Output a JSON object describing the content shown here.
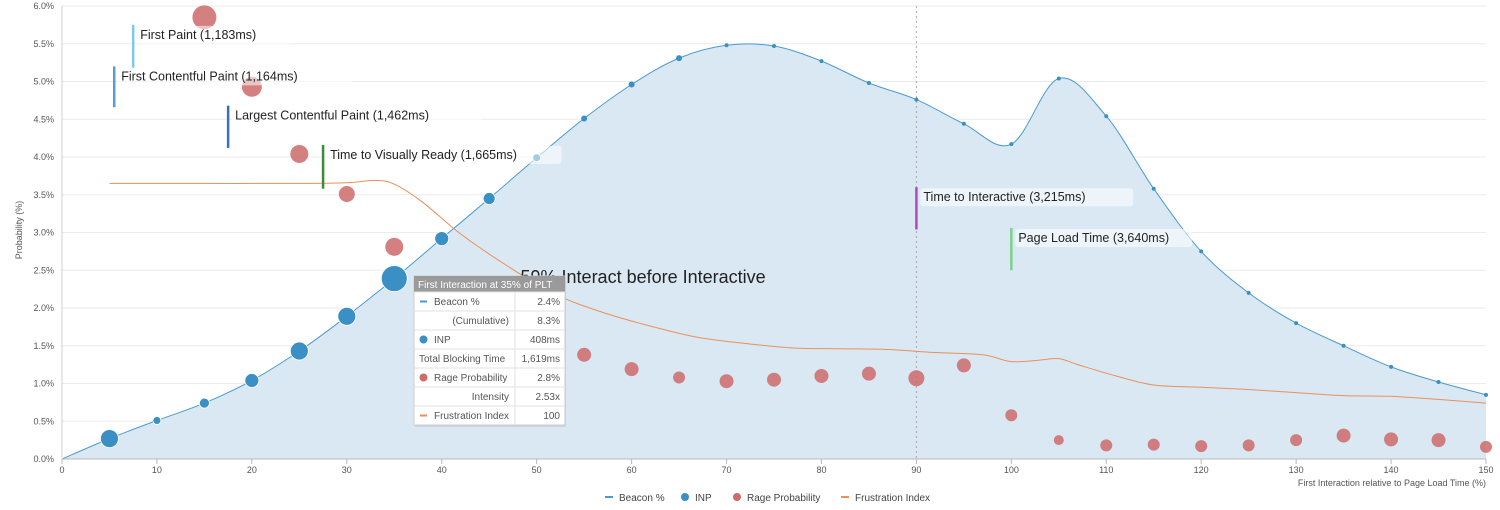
{
  "chart_data": {
    "type": "area",
    "title": "",
    "xlabel": "First Interaction relative to Page Load Time (%)",
    "ylabel": "Probability (%)",
    "xlim": [
      0,
      150
    ],
    "ylim": [
      0,
      6.0
    ],
    "x_ticks": [
      "0",
      "10",
      "20",
      "30",
      "40",
      "50",
      "60",
      "70",
      "80",
      "90",
      "100",
      "110",
      "120",
      "130",
      "140",
      "150"
    ],
    "y_ticks": [
      "0.0%",
      "0.5%",
      "1.0%",
      "1.5%",
      "2.0%",
      "2.5%",
      "3.0%",
      "3.5%",
      "4.0%",
      "4.5%",
      "5.0%",
      "5.5%",
      "6.0%"
    ],
    "legend_position": "bottom-center",
    "series": [
      {
        "name": "Beacon %",
        "type": "area",
        "color": "#4a9bd1",
        "points": [
          [
            0,
            0
          ],
          [
            5,
            0.27
          ],
          [
            10,
            0.51
          ],
          [
            15,
            0.74
          ],
          [
            20,
            1.04
          ],
          [
            25,
            1.43
          ],
          [
            30,
            1.89
          ],
          [
            35,
            2.39
          ],
          [
            40,
            2.92
          ],
          [
            45,
            3.45
          ],
          [
            50,
            3.99
          ],
          [
            55,
            4.51
          ],
          [
            60,
            4.96
          ],
          [
            65,
            5.31
          ],
          [
            70,
            5.48
          ],
          [
            75,
            5.47
          ],
          [
            80,
            5.27
          ],
          [
            85,
            4.98
          ],
          [
            90,
            4.76
          ],
          [
            95,
            4.44
          ],
          [
            100,
            4.17
          ],
          [
            105,
            5.04
          ],
          [
            110,
            4.54
          ],
          [
            115,
            3.58
          ],
          [
            120,
            2.75
          ],
          [
            125,
            2.2
          ],
          [
            130,
            1.8
          ],
          [
            135,
            1.5
          ],
          [
            140,
            1.22
          ],
          [
            145,
            1.02
          ],
          [
            150,
            0.85
          ]
        ]
      },
      {
        "name": "INP",
        "type": "bubble",
        "color": "#3a8fc4",
        "points": [
          [
            5,
            0.27,
            9
          ],
          [
            10,
            0.51,
            4
          ],
          [
            15,
            0.74,
            5
          ],
          [
            20,
            1.04,
            7
          ],
          [
            25,
            1.43,
            9
          ],
          [
            30,
            1.89,
            9
          ],
          [
            35,
            2.39,
            13
          ],
          [
            40,
            2.92,
            7
          ],
          [
            45,
            3.45,
            6
          ],
          [
            50,
            3.99,
            4
          ],
          [
            55,
            4.51,
            3
          ],
          [
            60,
            4.96,
            3
          ],
          [
            65,
            5.31,
            3
          ],
          [
            70,
            5.48,
            2
          ],
          [
            75,
            5.47,
            2
          ],
          [
            80,
            5.27,
            2
          ],
          [
            85,
            4.98,
            2
          ],
          [
            90,
            4.76,
            2
          ],
          [
            95,
            4.44,
            2
          ],
          [
            100,
            4.17,
            2
          ],
          [
            105,
            5.04,
            2
          ],
          [
            110,
            4.54,
            2
          ],
          [
            115,
            3.58,
            2
          ],
          [
            120,
            2.75,
            2
          ],
          [
            125,
            2.2,
            2
          ],
          [
            130,
            1.8,
            2
          ],
          [
            135,
            1.5,
            2
          ],
          [
            140,
            1.22,
            2
          ],
          [
            145,
            1.02,
            2
          ],
          [
            150,
            0.85,
            2
          ]
        ]
      },
      {
        "name": "Rage Probability",
        "type": "bubble",
        "color": "#cd6a6a",
        "points": [
          [
            15,
            5.85,
            12
          ],
          [
            20,
            4.93,
            10
          ],
          [
            25,
            4.04,
            9
          ],
          [
            30,
            3.51,
            8
          ],
          [
            35,
            2.81,
            9
          ],
          [
            55,
            1.38,
            7
          ],
          [
            60,
            1.19,
            7
          ],
          [
            65,
            1.08,
            6
          ],
          [
            70,
            1.03,
            7
          ],
          [
            75,
            1.05,
            7
          ],
          [
            80,
            1.1,
            7
          ],
          [
            85,
            1.13,
            7
          ],
          [
            90,
            1.07,
            8
          ],
          [
            95,
            1.24,
            7
          ],
          [
            100,
            0.58,
            6
          ],
          [
            105,
            0.25,
            5
          ],
          [
            110,
            0.18,
            6
          ],
          [
            115,
            0.19,
            6
          ],
          [
            120,
            0.17,
            6
          ],
          [
            125,
            0.18,
            6
          ],
          [
            130,
            0.25,
            6
          ],
          [
            135,
            0.31,
            7
          ],
          [
            140,
            0.26,
            7
          ],
          [
            145,
            0.25,
            7
          ],
          [
            150,
            0.16,
            6
          ]
        ]
      },
      {
        "name": "Frustration Index",
        "type": "line",
        "color": "#e8915a",
        "points": [
          [
            5,
            3.65
          ],
          [
            15,
            3.65
          ],
          [
            25,
            3.65
          ],
          [
            30,
            3.66
          ],
          [
            33,
            3.69
          ],
          [
            35,
            3.64
          ],
          [
            38,
            3.4
          ],
          [
            42,
            2.98
          ],
          [
            47,
            2.55
          ],
          [
            52,
            2.18
          ],
          [
            57,
            1.94
          ],
          [
            62,
            1.76
          ],
          [
            67,
            1.61
          ],
          [
            72,
            1.53
          ],
          [
            77,
            1.47
          ],
          [
            82,
            1.46
          ],
          [
            87,
            1.45
          ],
          [
            92,
            1.41
          ],
          [
            97,
            1.38
          ],
          [
            100,
            1.29
          ],
          [
            103,
            1.31
          ],
          [
            105,
            1.33
          ],
          [
            107,
            1.25
          ],
          [
            111,
            1.1
          ],
          [
            115,
            0.98
          ],
          [
            120,
            0.95
          ],
          [
            125,
            0.92
          ],
          [
            130,
            0.88
          ],
          [
            135,
            0.84
          ],
          [
            140,
            0.83
          ],
          [
            145,
            0.79
          ],
          [
            150,
            0.74
          ]
        ]
      }
    ],
    "vertical_line": {
      "x": 90,
      "style": "dotted"
    },
    "annotations": [
      {
        "text": "First Paint (1,183ms)",
        "x": 7.5,
        "y_top": 5.75,
        "y_bottom": 5.18,
        "color": "#7fc8e8"
      },
      {
        "text": "First Contentful Paint (1,164ms)",
        "x": 5.5,
        "y_top": 5.2,
        "y_bottom": 4.66,
        "color": "#5b9bd0"
      },
      {
        "text": "Largest Contentful Paint (1,462ms)",
        "x": 17.5,
        "y_top": 4.68,
        "y_bottom": 4.12,
        "color": "#3a6ec0"
      },
      {
        "text": "Time to Visually Ready (1,665ms)",
        "x": 27.5,
        "y_top": 4.16,
        "y_bottom": 3.58,
        "color": "#3a8a3a"
      },
      {
        "text": "Time to Interactive (3,215ms)",
        "x": 90,
        "y_top": 3.6,
        "y_bottom": 3.04,
        "color": "#b04ab8"
      },
      {
        "text": "Page Load Time (3,640ms)",
        "x": 100,
        "y_top": 3.06,
        "y_bottom": 2.5,
        "color": "#7fd18a"
      }
    ],
    "center_annotation": {
      "text": "← 59% Interact before Interactive",
      "x": 60,
      "y": 2.33
    },
    "tooltip": {
      "header": "First Interaction at 35% of PLT",
      "rows": [
        {
          "label": "Beacon %",
          "value": "2.4%",
          "marker": "line",
          "color": "#4a9bd1"
        },
        {
          "label": "(Cumulative)",
          "value": "8.3%",
          "marker": "none",
          "color": ""
        },
        {
          "label": "INP",
          "value": "408ms",
          "marker": "dot",
          "color": "#3a8fc4"
        },
        {
          "label": "Total Blocking Time",
          "value": "1,619ms",
          "marker": "none",
          "color": ""
        },
        {
          "label": "Rage Probability",
          "value": "2.8%",
          "marker": "dot",
          "color": "#cd6a6a"
        },
        {
          "label": "Intensity",
          "value": "2.53x",
          "marker": "none",
          "color": ""
        },
        {
          "label": "Frustration Index",
          "value": "100",
          "marker": "line",
          "color": "#e8915a"
        }
      ]
    }
  }
}
